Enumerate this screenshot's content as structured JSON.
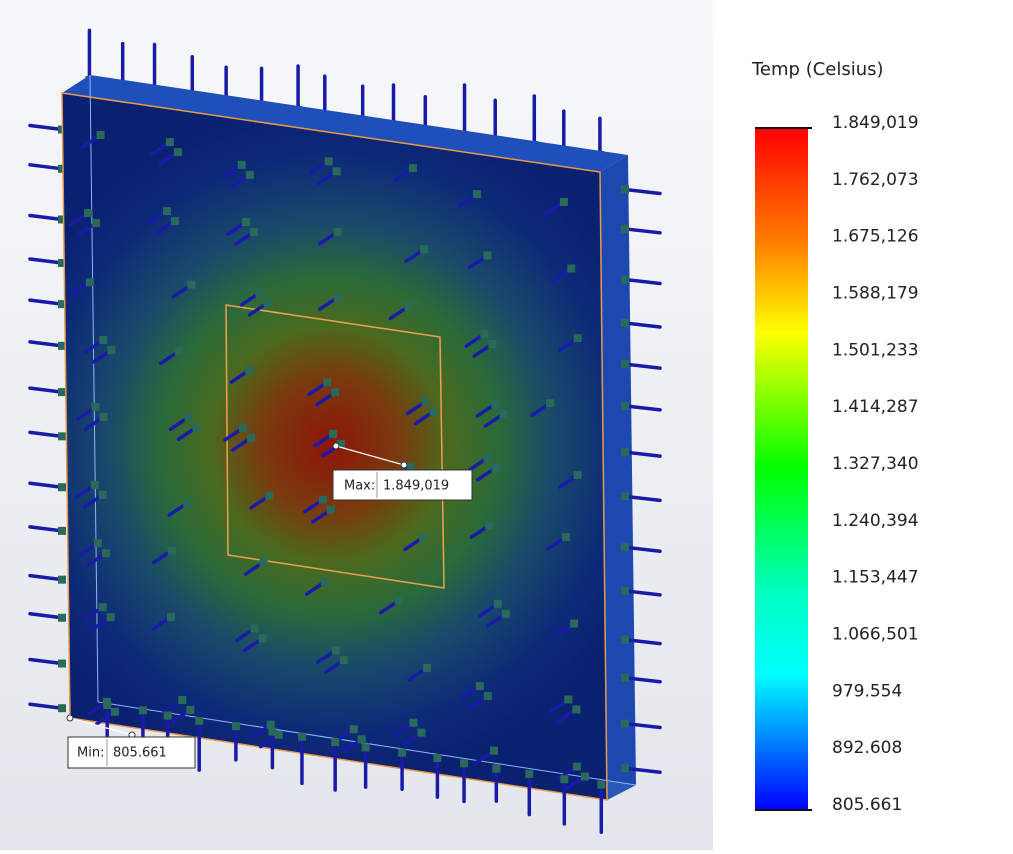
{
  "legend": {
    "title": "Temp (Celsius)",
    "labels": [
      "1.849,019",
      "1.762,073",
      "1.675,126",
      "1.588,179",
      "1.501,233",
      "1.414,287",
      "1.327,340",
      "1.240,394",
      "1.153,447",
      "1.066,501",
      "979.554",
      "892.608",
      "805.661"
    ]
  },
  "max_probe": {
    "label": "Max:",
    "value": "1.849,019"
  },
  "min_probe": {
    "label": "Min:",
    "value": "805.661"
  }
}
